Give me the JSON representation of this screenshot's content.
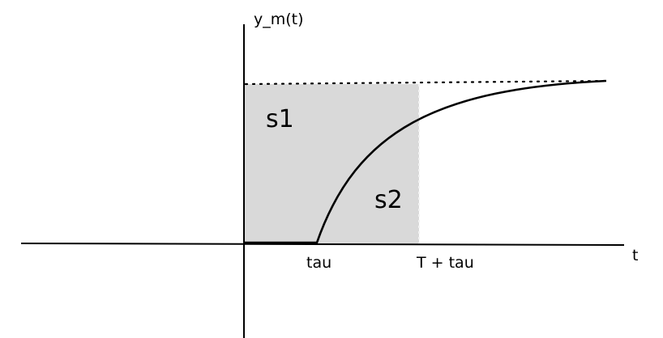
{
  "diagram": {
    "y_axis_label": "y_m(t)",
    "x_axis_label": "t",
    "region_upper_label": "s1",
    "region_lower_label": "s2",
    "tick_tau_label": "tau",
    "tick_T_tau_label": "T + tau"
  },
  "colors": {
    "region_fill": "#d9d9d9",
    "line": "#000000",
    "background": "#ffffff"
  }
}
